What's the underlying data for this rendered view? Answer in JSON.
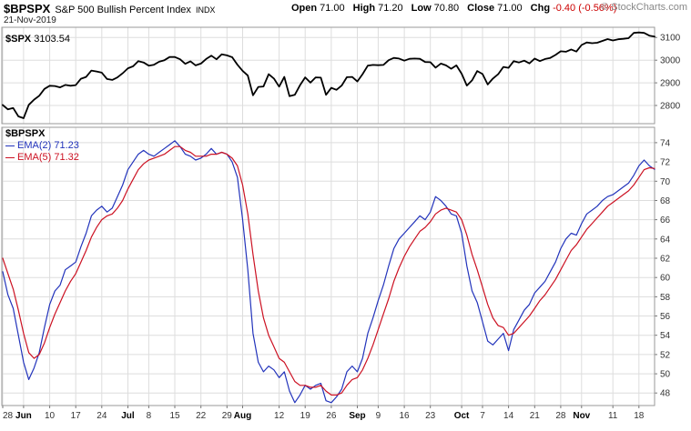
{
  "header": {
    "symbol": "$BPSPX",
    "name": "S&P 500 Bullish Percent Index",
    "exchange": "INDX",
    "copyright": "© StockCharts.com",
    "date": "21-Nov-2019",
    "quote": {
      "open_label": "Open",
      "open": "71.00",
      "high_label": "High",
      "high": "71.20",
      "low_label": "Low",
      "low": "70.80",
      "close_label": "Close",
      "close": "71.00",
      "chg_label": "Chg",
      "chg": "-0.40 (-0.56%)"
    }
  },
  "colors": {
    "grid": "#dddddd",
    "border": "#999999",
    "axis": "#777777",
    "axis_text": "#333333",
    "negative": "#cc0000",
    "spx_line": "#000000",
    "ema2_line": "#2233bb",
    "ema5_line": "#cc1122"
  },
  "x_axis": {
    "n_points": 126,
    "labels": [
      {
        "text": "28",
        "i": 0
      },
      {
        "text": "Jun",
        "i": 4,
        "bold": true
      },
      {
        "text": "10",
        "i": 9
      },
      {
        "text": "17",
        "i": 14
      },
      {
        "text": "24",
        "i": 19
      },
      {
        "text": "Jul",
        "i": 24,
        "bold": true
      },
      {
        "text": "8",
        "i": 28
      },
      {
        "text": "15",
        "i": 33
      },
      {
        "text": "22",
        "i": 38
      },
      {
        "text": "29",
        "i": 43
      },
      {
        "text": "Aug",
        "i": 46,
        "bold": true
      },
      {
        "text": "12",
        "i": 53
      },
      {
        "text": "19",
        "i": 58
      },
      {
        "text": "26",
        "i": 63
      },
      {
        "text": "Sep",
        "i": 68,
        "bold": true
      },
      {
        "text": "9",
        "i": 72
      },
      {
        "text": "16",
        "i": 77
      },
      {
        "text": "23",
        "i": 82
      },
      {
        "text": "Oct",
        "i": 88,
        "bold": true
      },
      {
        "text": "7",
        "i": 92
      },
      {
        "text": "14",
        "i": 97
      },
      {
        "text": "21",
        "i": 102
      },
      {
        "text": "28",
        "i": 107
      },
      {
        "text": "Nov",
        "i": 111,
        "bold": true
      },
      {
        "text": "11",
        "i": 117
      },
      {
        "text": "18",
        "i": 122
      }
    ]
  },
  "chart_data": [
    {
      "type": "line",
      "title": "$SPX",
      "last_label": "3103.54",
      "ylim": [
        2720,
        3145
      ],
      "yticks": [
        2800,
        2900,
        3000,
        3100
      ],
      "grid": true,
      "legend_position": "top-left",
      "series": [
        {
          "name": "$SPX",
          "color": "#000000",
          "width": 1.8,
          "values": [
            2802,
            2783,
            2789,
            2752,
            2744,
            2803,
            2826,
            2843,
            2873,
            2887,
            2886,
            2880,
            2891,
            2887,
            2890,
            2918,
            2926,
            2954,
            2950,
            2945,
            2917,
            2913,
            2924,
            2942,
            2964,
            2973,
            2996,
            2990,
            2976,
            2980,
            2993,
            3000,
            3014,
            3014,
            3004,
            2984,
            2995,
            2977,
            2985,
            3005,
            3020,
            3004,
            3026,
            3021,
            3013,
            2980,
            2953,
            2932,
            2845,
            2882,
            2884,
            2938,
            2919,
            2883,
            2926,
            2841,
            2847,
            2889,
            2924,
            2901,
            2924,
            2923,
            2847,
            2878,
            2869,
            2888,
            2925,
            2926,
            2906,
            2938,
            2976,
            2979,
            2978,
            2979,
            3000,
            3010,
            3007,
            2998,
            3006,
            3007,
            3006,
            2992,
            2991,
            2967,
            2985,
            2977,
            2962,
            2977,
            2940,
            2888,
            2911,
            2952,
            2939,
            2893,
            2919,
            2938,
            2970,
            2966,
            2996,
            2990,
            2998,
            2986,
            3007,
            2996,
            3005,
            3010,
            3023,
            3039,
            3037,
            3047,
            3038,
            3067,
            3078,
            3075,
            3077,
            3085,
            3093,
            3087,
            3092,
            3094,
            3097,
            3120,
            3122,
            3120,
            3108,
            3103.54
          ]
        }
      ]
    },
    {
      "type": "line",
      "title": "$BPSPX",
      "ylim": [
        46.7,
        75.6
      ],
      "yticks": [
        48,
        50,
        52,
        54,
        56,
        58,
        60,
        62,
        64,
        66,
        68,
        70,
        72,
        74
      ],
      "grid": true,
      "legend_position": "top-left",
      "series": [
        {
          "name": "EMA(2)",
          "last_label": "71.23",
          "color": "#2233bb",
          "width": 1.2,
          "values": [
            60.6,
            58.2,
            56.8,
            54.0,
            51.2,
            49.4,
            50.6,
            52.2,
            54.8,
            57.2,
            58.6,
            59.2,
            60.8,
            61.2,
            61.6,
            63.2,
            64.6,
            66.4,
            67.0,
            67.4,
            66.8,
            67.2,
            68.4,
            69.6,
            71.2,
            72.0,
            72.8,
            73.2,
            72.8,
            72.6,
            73.0,
            73.4,
            73.8,
            74.2,
            73.6,
            72.8,
            72.6,
            72.2,
            72.4,
            72.8,
            73.4,
            72.8,
            73.0,
            72.8,
            72.0,
            70.4,
            66.0,
            60.8,
            54.2,
            51.2,
            50.2,
            50.8,
            50.4,
            49.6,
            50.2,
            48.2,
            47.0,
            47.8,
            48.8,
            48.4,
            48.8,
            49.0,
            47.2,
            47.0,
            47.6,
            48.4,
            50.2,
            50.8,
            50.2,
            51.6,
            54.2,
            55.8,
            57.6,
            59.2,
            61.2,
            63.0,
            64.0,
            64.6,
            65.2,
            65.8,
            66.4,
            66.0,
            66.8,
            68.4,
            68.0,
            67.4,
            66.6,
            66.4,
            64.6,
            61.2,
            58.6,
            57.4,
            55.4,
            53.4,
            53.0,
            53.6,
            54.2,
            52.4,
            54.6,
            55.6,
            56.6,
            57.2,
            58.4,
            59.0,
            59.6,
            60.6,
            61.6,
            63.0,
            64.0,
            64.6,
            64.4,
            65.6,
            66.6,
            67.0,
            67.4,
            68.0,
            68.4,
            68.6,
            69.0,
            69.4,
            69.8,
            70.6,
            71.6,
            72.2,
            71.6,
            71.23
          ]
        },
        {
          "name": "EMA(5)",
          "last_label": "71.32",
          "color": "#cc1122",
          "width": 1.2,
          "values": [
            62.0,
            60.4,
            58.8,
            56.6,
            54.2,
            52.2,
            51.6,
            52.0,
            53.2,
            54.8,
            56.2,
            57.4,
            58.6,
            59.6,
            60.4,
            61.6,
            62.8,
            64.2,
            65.2,
            66.0,
            66.4,
            66.6,
            67.2,
            68.0,
            69.2,
            70.2,
            71.2,
            71.8,
            72.2,
            72.4,
            72.6,
            72.8,
            73.2,
            73.6,
            73.6,
            73.2,
            73.0,
            72.6,
            72.6,
            72.6,
            72.8,
            72.8,
            73.0,
            72.8,
            72.4,
            71.6,
            69.6,
            66.6,
            62.4,
            58.6,
            55.8,
            54.0,
            52.8,
            51.6,
            51.2,
            50.2,
            49.2,
            48.8,
            48.8,
            48.6,
            48.6,
            48.8,
            48.2,
            47.8,
            47.8,
            48.0,
            48.8,
            49.4,
            49.6,
            50.4,
            51.6,
            53.0,
            54.6,
            56.2,
            57.8,
            59.6,
            61.0,
            62.2,
            63.2,
            64.0,
            64.8,
            65.2,
            65.8,
            66.6,
            67.0,
            67.2,
            67.0,
            66.8,
            66.0,
            64.4,
            62.4,
            60.8,
            59.0,
            57.2,
            55.8,
            55.0,
            54.8,
            54.0,
            54.2,
            54.8,
            55.4,
            56.0,
            56.8,
            57.6,
            58.2,
            59.0,
            59.8,
            60.8,
            61.8,
            62.8,
            63.4,
            64.2,
            65.0,
            65.6,
            66.2,
            66.8,
            67.4,
            67.8,
            68.2,
            68.6,
            69.0,
            69.6,
            70.4,
            71.2,
            71.4,
            71.32
          ]
        }
      ]
    }
  ]
}
